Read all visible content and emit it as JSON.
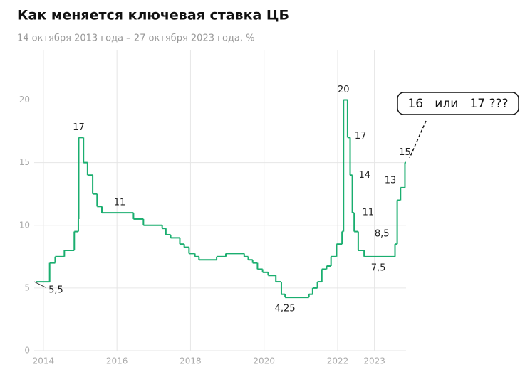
{
  "chart_data": {
    "type": "step",
    "title": "Как меняется ключевая ставка ЦБ",
    "subtitle": "14 октября 2013 года – 27 октября 2023 года, %",
    "annotation": "16   или   17 ???",
    "color": "#1aae6f",
    "grid": true,
    "xlim": [
      2013.75,
      2023.86
    ],
    "xticks": [
      2014,
      2016,
      2018,
      2020,
      2022,
      2023
    ],
    "ylim": [
      0,
      24
    ],
    "yticks": [
      0,
      5,
      10,
      15,
      20
    ],
    "x": [
      2013.79,
      2014.17,
      2014.32,
      2014.57,
      2014.84,
      2014.95,
      2014.96,
      2015.09,
      2015.2,
      2015.34,
      2015.46,
      2015.59,
      2016.45,
      2016.72,
      2017.23,
      2017.33,
      2017.46,
      2017.71,
      2017.83,
      2017.96,
      2018.12,
      2018.23,
      2018.71,
      2018.96,
      2019.46,
      2019.57,
      2019.69,
      2019.82,
      2019.96,
      2020.11,
      2020.32,
      2020.47,
      2020.57,
      2021.22,
      2021.32,
      2021.45,
      2021.57,
      2021.7,
      2021.82,
      2021.97,
      2022.12,
      2022.16,
      2022.27,
      2022.34,
      2022.4,
      2022.45,
      2022.56,
      2022.72,
      2023.56,
      2023.62,
      2023.71,
      2023.83
    ],
    "values": [
      5.5,
      7,
      7.5,
      8,
      9.5,
      10.5,
      17,
      15,
      14,
      12.5,
      11.5,
      11,
      10.5,
      10,
      9.75,
      9.25,
      9,
      8.5,
      8.25,
      7.75,
      7.5,
      7.25,
      7.5,
      7.75,
      7.5,
      7.25,
      7,
      6.5,
      6.25,
      6,
      5.5,
      4.5,
      4.25,
      4.5,
      5,
      5.5,
      6.5,
      6.75,
      7.5,
      8.5,
      9.5,
      20,
      17,
      14,
      11,
      9.5,
      8,
      7.5,
      8.5,
      12,
      13,
      15
    ],
    "value_labels": [
      "5,5",
      null,
      null,
      null,
      null,
      null,
      "17",
      null,
      null,
      null,
      null,
      "11",
      null,
      null,
      null,
      null,
      null,
      null,
      null,
      null,
      null,
      null,
      null,
      null,
      null,
      null,
      null,
      null,
      null,
      null,
      null,
      null,
      "4,25",
      null,
      null,
      null,
      null,
      null,
      null,
      null,
      null,
      "20",
      "17",
      "14",
      "11",
      null,
      null,
      "7,5",
      "8,5",
      null,
      "13",
      "15"
    ]
  }
}
